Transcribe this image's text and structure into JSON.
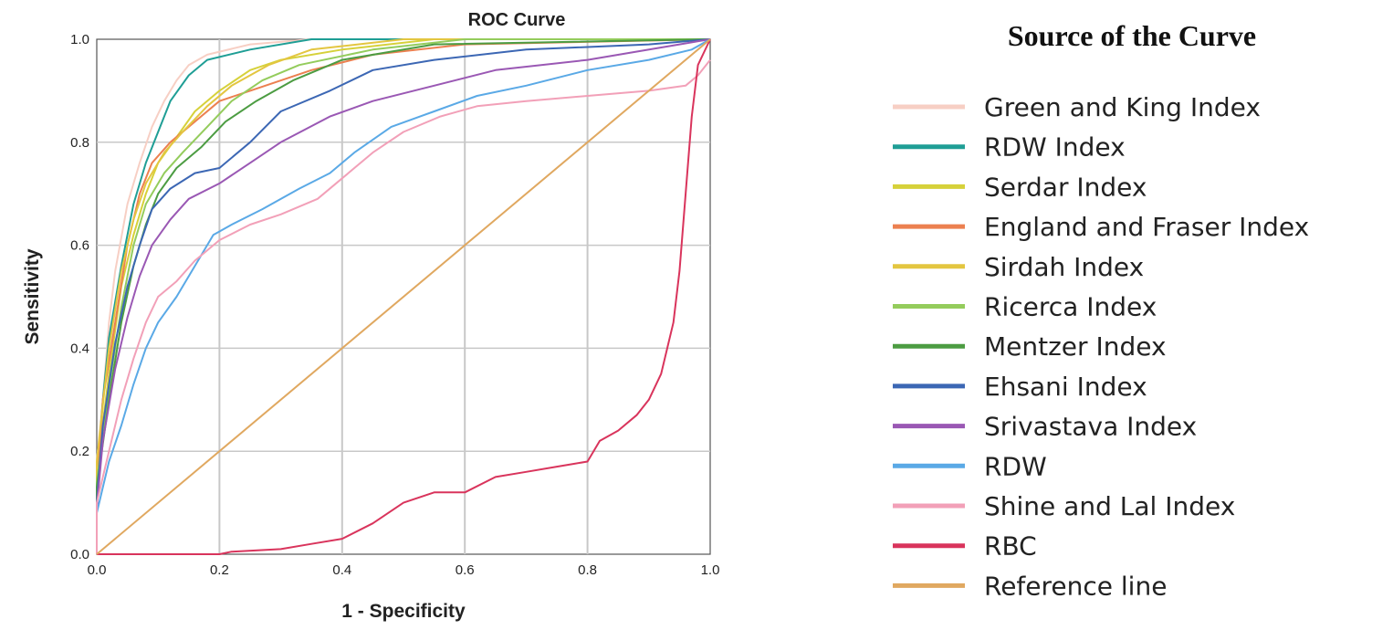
{
  "chart_data": {
    "type": "line",
    "title": "ROC Curve",
    "xlabel": "1 - Specificity",
    "ylabel": "Sensitivity",
    "xlim": [
      0.0,
      1.0
    ],
    "ylim": [
      0.0,
      1.0
    ],
    "xticks": [
      "0.0",
      "0.2",
      "0.4",
      "0.6",
      "0.8",
      "1.0"
    ],
    "yticks": [
      "0.0",
      "0.2",
      "0.4",
      "0.6",
      "0.8",
      "1.0"
    ],
    "grid": true,
    "legend_title": "Source of the Curve",
    "legend_position": "right",
    "series": [
      {
        "name": "Green and King Index",
        "color": "#f7cfc4",
        "points": [
          [
            0,
            0
          ],
          [
            0,
            0.18
          ],
          [
            0.01,
            0.3
          ],
          [
            0.02,
            0.45
          ],
          [
            0.03,
            0.55
          ],
          [
            0.05,
            0.68
          ],
          [
            0.07,
            0.76
          ],
          [
            0.09,
            0.83
          ],
          [
            0.11,
            0.88
          ],
          [
            0.13,
            0.92
          ],
          [
            0.15,
            0.95
          ],
          [
            0.18,
            0.97
          ],
          [
            0.25,
            0.99
          ],
          [
            0.35,
            1.0
          ],
          [
            1,
            1
          ]
        ]
      },
      {
        "name": "RDW Index",
        "color": "#1f9e95",
        "points": [
          [
            0,
            0
          ],
          [
            0,
            0.15
          ],
          [
            0.01,
            0.3
          ],
          [
            0.02,
            0.42
          ],
          [
            0.04,
            0.56
          ],
          [
            0.06,
            0.68
          ],
          [
            0.08,
            0.76
          ],
          [
            0.1,
            0.82
          ],
          [
            0.12,
            0.88
          ],
          [
            0.15,
            0.93
          ],
          [
            0.18,
            0.96
          ],
          [
            0.25,
            0.98
          ],
          [
            0.35,
            1.0
          ],
          [
            1,
            1
          ]
        ]
      },
      {
        "name": "Serdar Index",
        "color": "#d6d13a",
        "points": [
          [
            0,
            0
          ],
          [
            0,
            0.16
          ],
          [
            0.02,
            0.35
          ],
          [
            0.04,
            0.52
          ],
          [
            0.06,
            0.62
          ],
          [
            0.08,
            0.7
          ],
          [
            0.1,
            0.76
          ],
          [
            0.13,
            0.81
          ],
          [
            0.16,
            0.86
          ],
          [
            0.2,
            0.9
          ],
          [
            0.25,
            0.94
          ],
          [
            0.3,
            0.96
          ],
          [
            0.4,
            0.98
          ],
          [
            0.55,
            1.0
          ],
          [
            1,
            1
          ]
        ]
      },
      {
        "name": "England and Fraser Index",
        "color": "#ec8050",
        "points": [
          [
            0,
            0
          ],
          [
            0,
            0.12
          ],
          [
            0.01,
            0.3
          ],
          [
            0.03,
            0.45
          ],
          [
            0.05,
            0.6
          ],
          [
            0.07,
            0.7
          ],
          [
            0.09,
            0.76
          ],
          [
            0.12,
            0.8
          ],
          [
            0.16,
            0.84
          ],
          [
            0.2,
            0.88
          ],
          [
            0.25,
            0.9
          ],
          [
            0.35,
            0.94
          ],
          [
            0.45,
            0.97
          ],
          [
            0.6,
            0.99
          ],
          [
            1,
            1
          ]
        ]
      },
      {
        "name": "Sirdah Index",
        "color": "#e3c640",
        "points": [
          [
            0,
            0
          ],
          [
            0,
            0.18
          ],
          [
            0.02,
            0.4
          ],
          [
            0.04,
            0.55
          ],
          [
            0.06,
            0.65
          ],
          [
            0.08,
            0.72
          ],
          [
            0.11,
            0.78
          ],
          [
            0.14,
            0.82
          ],
          [
            0.18,
            0.87
          ],
          [
            0.22,
            0.91
          ],
          [
            0.28,
            0.95
          ],
          [
            0.35,
            0.98
          ],
          [
            0.5,
            1.0
          ],
          [
            1,
            1
          ]
        ]
      },
      {
        "name": "Ricerca Index",
        "color": "#94cc5c",
        "points": [
          [
            0,
            0
          ],
          [
            0,
            0.14
          ],
          [
            0.02,
            0.32
          ],
          [
            0.04,
            0.48
          ],
          [
            0.06,
            0.6
          ],
          [
            0.08,
            0.68
          ],
          [
            0.11,
            0.74
          ],
          [
            0.14,
            0.78
          ],
          [
            0.18,
            0.83
          ],
          [
            0.22,
            0.88
          ],
          [
            0.27,
            0.92
          ],
          [
            0.33,
            0.95
          ],
          [
            0.45,
            0.98
          ],
          [
            0.6,
            1.0
          ],
          [
            1,
            1
          ]
        ]
      },
      {
        "name": "Mentzer Index",
        "color": "#4c9c42",
        "points": [
          [
            0,
            0
          ],
          [
            0,
            0.13
          ],
          [
            0.02,
            0.3
          ],
          [
            0.04,
            0.45
          ],
          [
            0.06,
            0.56
          ],
          [
            0.08,
            0.64
          ],
          [
            0.1,
            0.7
          ],
          [
            0.13,
            0.75
          ],
          [
            0.17,
            0.79
          ],
          [
            0.21,
            0.84
          ],
          [
            0.26,
            0.88
          ],
          [
            0.32,
            0.92
          ],
          [
            0.4,
            0.96
          ],
          [
            0.55,
            0.99
          ],
          [
            1,
            1
          ]
        ]
      },
      {
        "name": "Ehsani Index",
        "color": "#3c67b4",
        "points": [
          [
            0,
            0
          ],
          [
            0,
            0.1
          ],
          [
            0.01,
            0.25
          ],
          [
            0.03,
            0.41
          ],
          [
            0.05,
            0.52
          ],
          [
            0.07,
            0.6
          ],
          [
            0.09,
            0.67
          ],
          [
            0.12,
            0.71
          ],
          [
            0.16,
            0.74
          ],
          [
            0.2,
            0.75
          ],
          [
            0.25,
            0.8
          ],
          [
            0.3,
            0.86
          ],
          [
            0.38,
            0.9
          ],
          [
            0.45,
            0.94
          ],
          [
            0.55,
            0.96
          ],
          [
            0.7,
            0.98
          ],
          [
            0.9,
            0.99
          ],
          [
            1,
            1
          ]
        ]
      },
      {
        "name": "Srivastava Index",
        "color": "#9a58b4",
        "points": [
          [
            0,
            0
          ],
          [
            0,
            0.09
          ],
          [
            0.01,
            0.22
          ],
          [
            0.03,
            0.36
          ],
          [
            0.05,
            0.46
          ],
          [
            0.07,
            0.54
          ],
          [
            0.09,
            0.6
          ],
          [
            0.12,
            0.65
          ],
          [
            0.15,
            0.69
          ],
          [
            0.2,
            0.72
          ],
          [
            0.25,
            0.76
          ],
          [
            0.3,
            0.8
          ],
          [
            0.38,
            0.85
          ],
          [
            0.45,
            0.88
          ],
          [
            0.55,
            0.91
          ],
          [
            0.65,
            0.94
          ],
          [
            0.8,
            0.96
          ],
          [
            0.95,
            0.99
          ],
          [
            1,
            1
          ]
        ]
      },
      {
        "name": "RDW",
        "color": "#5aa9e6",
        "points": [
          [
            0,
            0
          ],
          [
            0,
            0.08
          ],
          [
            0.02,
            0.18
          ],
          [
            0.04,
            0.25
          ],
          [
            0.06,
            0.33
          ],
          [
            0.08,
            0.4
          ],
          [
            0.1,
            0.45
          ],
          [
            0.13,
            0.5
          ],
          [
            0.16,
            0.56
          ],
          [
            0.19,
            0.62
          ],
          [
            0.22,
            0.64
          ],
          [
            0.27,
            0.67
          ],
          [
            0.33,
            0.71
          ],
          [
            0.38,
            0.74
          ],
          [
            0.42,
            0.78
          ],
          [
            0.48,
            0.83
          ],
          [
            0.55,
            0.86
          ],
          [
            0.62,
            0.89
          ],
          [
            0.7,
            0.91
          ],
          [
            0.8,
            0.94
          ],
          [
            0.9,
            0.96
          ],
          [
            0.97,
            0.98
          ],
          [
            1,
            1
          ]
        ]
      },
      {
        "name": "Shine and Lal Index",
        "color": "#f2a0b8",
        "points": [
          [
            0,
            0
          ],
          [
            0,
            0.1
          ],
          [
            0.02,
            0.2
          ],
          [
            0.04,
            0.3
          ],
          [
            0.06,
            0.38
          ],
          [
            0.08,
            0.45
          ],
          [
            0.1,
            0.5
          ],
          [
            0.13,
            0.53
          ],
          [
            0.16,
            0.57
          ],
          [
            0.2,
            0.61
          ],
          [
            0.25,
            0.64
          ],
          [
            0.3,
            0.66
          ],
          [
            0.36,
            0.69
          ],
          [
            0.4,
            0.73
          ],
          [
            0.45,
            0.78
          ],
          [
            0.5,
            0.82
          ],
          [
            0.56,
            0.85
          ],
          [
            0.62,
            0.87
          ],
          [
            0.7,
            0.88
          ],
          [
            0.8,
            0.89
          ],
          [
            0.9,
            0.9
          ],
          [
            0.96,
            0.91
          ],
          [
            0.98,
            0.93
          ],
          [
            1,
            0.96
          ]
        ]
      },
      {
        "name": "RBC",
        "color": "#d9345c",
        "points": [
          [
            0,
            0
          ],
          [
            0.2,
            0
          ],
          [
            0.22,
            0.005
          ],
          [
            0.3,
            0.01
          ],
          [
            0.35,
            0.02
          ],
          [
            0.4,
            0.03
          ],
          [
            0.45,
            0.06
          ],
          [
            0.5,
            0.1
          ],
          [
            0.55,
            0.12
          ],
          [
            0.6,
            0.12
          ],
          [
            0.65,
            0.15
          ],
          [
            0.7,
            0.16
          ],
          [
            0.75,
            0.17
          ],
          [
            0.8,
            0.18
          ],
          [
            0.82,
            0.22
          ],
          [
            0.85,
            0.24
          ],
          [
            0.88,
            0.27
          ],
          [
            0.9,
            0.3
          ],
          [
            0.92,
            0.35
          ],
          [
            0.94,
            0.45
          ],
          [
            0.95,
            0.55
          ],
          [
            0.96,
            0.7
          ],
          [
            0.97,
            0.85
          ],
          [
            0.98,
            0.95
          ],
          [
            1,
            1
          ]
        ]
      },
      {
        "name": "Reference line",
        "color": "#e0a860",
        "points": [
          [
            0,
            0
          ],
          [
            1,
            1
          ]
        ]
      }
    ]
  }
}
